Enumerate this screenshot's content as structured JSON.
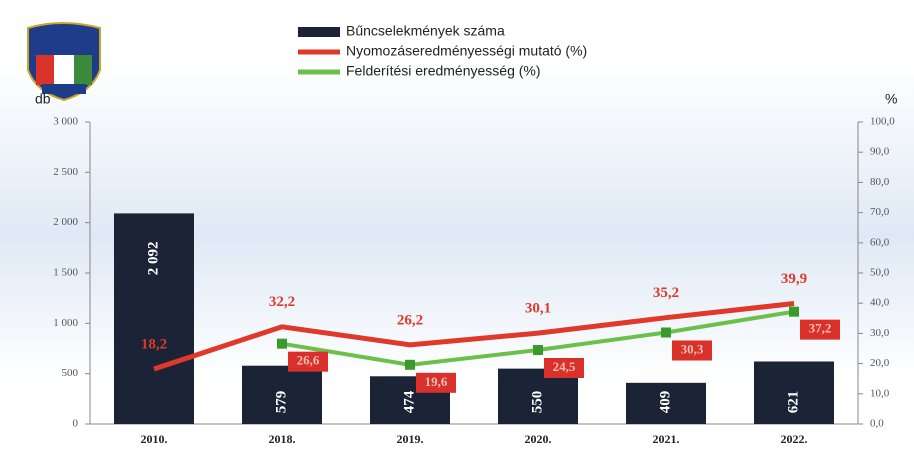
{
  "chart_data": {
    "type": "bar",
    "y_label": "db",
    "y2_label": "%",
    "categories": [
      "2010.",
      "2018.",
      "2019.",
      "2020.",
      "2021.",
      "2022."
    ],
    "series": [
      {
        "name": "Bűncselekmények száma",
        "type": "bar",
        "color": "#1b2436",
        "values": [
          2092,
          579,
          474,
          550,
          409,
          621
        ],
        "value_labels": [
          "2 092",
          "579",
          "474",
          "550",
          "409",
          "621"
        ]
      },
      {
        "name": "Nyomozáseredményességi mutató (%)",
        "type": "line",
        "axis": "y2",
        "color": "#e0392a",
        "values": [
          18.2,
          32.2,
          26.2,
          30.1,
          35.2,
          39.9
        ],
        "value_labels": [
          "18,2",
          "32,2",
          "26,2",
          "30,1",
          "35,2",
          "39,9"
        ]
      },
      {
        "name": "Felderítési eredményesség (%)",
        "type": "line",
        "axis": "y2",
        "color": "#6cc04a",
        "values": [
          null,
          26.6,
          19.6,
          24.5,
          30.3,
          37.2
        ],
        "value_labels": [
          null,
          "26,6",
          "19,6",
          "24,5",
          "30,3",
          "37,2"
        ]
      }
    ],
    "ylim": [
      0,
      3000
    ],
    "yticks": [
      {
        "value": 0,
        "label": "0"
      },
      {
        "value": 500,
        "label": "500"
      },
      {
        "value": 1000,
        "label": "1 000"
      },
      {
        "value": 1500,
        "label": "1 500"
      },
      {
        "value": 2000,
        "label": "2 000"
      },
      {
        "value": 2500,
        "label": "2 500"
      },
      {
        "value": 3000,
        "label": "3 000"
      }
    ],
    "y2lim": [
      0,
      100
    ],
    "y2ticks": [
      {
        "value": 0,
        "label": "0,0"
      },
      {
        "value": 10,
        "label": "10,0"
      },
      {
        "value": 20,
        "label": "20,0"
      },
      {
        "value": 30,
        "label": "30,0"
      },
      {
        "value": 40,
        "label": "40,0"
      },
      {
        "value": 50,
        "label": "50,0"
      },
      {
        "value": 60,
        "label": "60,0"
      },
      {
        "value": 70,
        "label": "70,0"
      },
      {
        "value": 80,
        "label": "80,0"
      },
      {
        "value": 90,
        "label": "90,0"
      },
      {
        "value": 100,
        "label": "100,0"
      }
    ]
  }
}
